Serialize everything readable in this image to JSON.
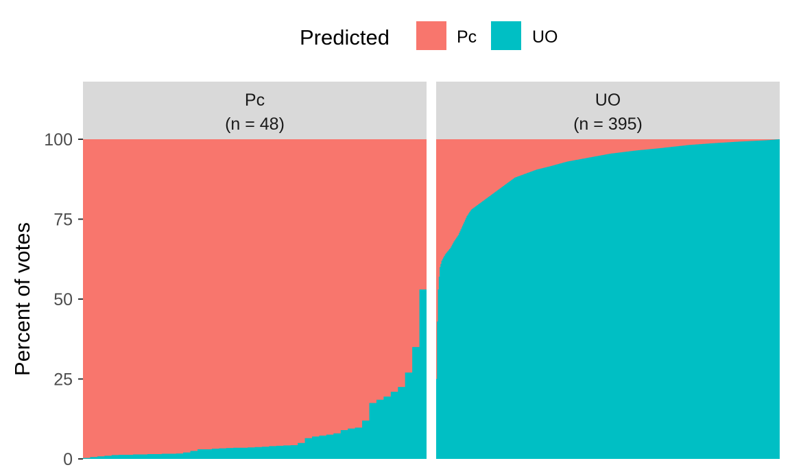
{
  "chart_data": {
    "type": "area",
    "ylabel": "Percent of votes",
    "xlabel": "",
    "ylim": [
      0,
      100
    ],
    "yticks": [
      0,
      25,
      50,
      75,
      100
    ],
    "legend": {
      "title": "Predicted",
      "position": "top",
      "entries": [
        {
          "label": "Pc",
          "color": "#F8766D"
        },
        {
          "label": "UO",
          "color": "#00BFC4"
        }
      ]
    },
    "note": "Stacked percent area per facet; UO share shown, Pc share = 100 - UO.",
    "facets": [
      {
        "label": "Pc",
        "subtitle": "(n = 48)",
        "n": 48,
        "series": [
          {
            "name": "UO",
            "color": "#00BFC4",
            "values": [
              0.3,
              0.6,
              0.8,
              1.0,
              1.2,
              1.3,
              1.3,
              1.4,
              1.4,
              1.5,
              1.5,
              1.6,
              1.6,
              1.7,
              2.0,
              2.5,
              3.0,
              3.0,
              3.2,
              3.3,
              3.4,
              3.5,
              3.5,
              3.6,
              3.7,
              3.8,
              4.0,
              4.1,
              4.2,
              4.3,
              5.0,
              6.5,
              7.0,
              7.3,
              7.6,
              8.0,
              9.0,
              9.5,
              9.8,
              12.0,
              17.5,
              18.5,
              19.5,
              21.0,
              22.5,
              27.0,
              35.0,
              53.0
            ]
          },
          {
            "name": "Pc",
            "color": "#F8766D"
          }
        ]
      },
      {
        "label": "UO",
        "subtitle": "(n = 395)",
        "n": 395,
        "series": [
          {
            "name": "UO",
            "color": "#00BFC4",
            "profile_index": [
              0,
              1,
              2,
              3,
              4,
              6,
              8,
              10,
              13,
              16,
              20,
              25,
              30,
              35,
              40,
              50,
              60,
              70,
              80,
              90,
              100,
              115,
              130,
              150,
              170,
              200,
              230,
              260,
              290,
              320,
              350,
              380,
              394
            ],
            "profile_values": [
              25,
              43,
              53,
              57,
              60,
              62,
              63,
              64,
              65,
              66,
              68,
              70,
              73,
              76,
              78,
              80,
              82,
              84,
              86,
              88,
              89,
              90.5,
              91.5,
              93,
              94,
              95.5,
              96.5,
              97.3,
              98.2,
              98.8,
              99.3,
              99.7,
              100
            ]
          },
          {
            "name": "Pc",
            "color": "#F8766D"
          }
        ]
      }
    ]
  }
}
